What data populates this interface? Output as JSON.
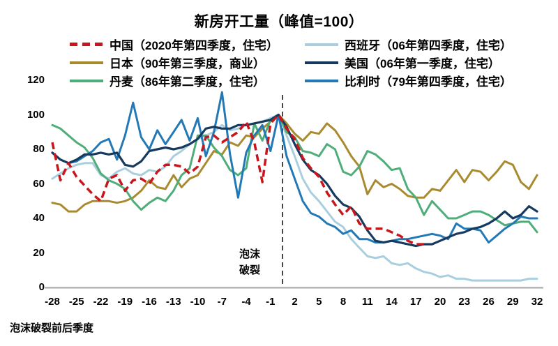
{
  "annotation": {
    "line1": "泡沫",
    "line2": "破裂"
  },
  "chart_data": {
    "type": "line",
    "title": "新房开工量（峰值=100）",
    "xlabel": "泡沫破裂前后季度",
    "ylabel": "",
    "xlim": [
      -28,
      32
    ],
    "ylim": [
      0,
      120
    ],
    "xticks": [
      -28,
      -25,
      -22,
      -19,
      -16,
      -13,
      -10,
      -7,
      -4,
      -1,
      2,
      5,
      8,
      11,
      14,
      17,
      20,
      23,
      26,
      29,
      32
    ],
    "yticks": [
      0,
      20,
      40,
      60,
      80,
      100,
      120
    ],
    "grid": false,
    "legend_position": "top",
    "axis_color": "#a6a6a6",
    "event_line": {
      "x": 0.5,
      "label": "泡沫破裂",
      "style": "dashed",
      "color": "#1a1a1a"
    },
    "draw_order": [
      "spain",
      "japan",
      "denmark",
      "belgium",
      "us",
      "china"
    ],
    "series": [
      {
        "id": "china",
        "label": "中国（2020年第四季度，住宅）",
        "color": "#c9161d",
        "dash": true,
        "width": 3.5,
        "x_start": -28,
        "values": [
          84,
          62,
          72,
          64,
          59,
          54,
          50,
          63,
          65,
          56,
          62,
          63,
          60,
          67,
          71,
          71,
          70,
          66,
          70,
          87,
          88,
          84,
          87,
          90,
          96,
          84,
          61,
          95,
          100,
          92,
          86,
          75,
          69,
          64,
          55,
          48,
          42,
          47,
          37,
          34,
          34,
          34,
          32,
          30,
          27,
          25,
          25
        ]
      },
      {
        "id": "spain",
        "label": "西班牙（06年第四季度，住宅）",
        "color": "#a9cfdf",
        "dash": false,
        "width": 3,
        "x_start": -28,
        "values": [
          63,
          66,
          69,
          71,
          72,
          72,
          65,
          63,
          67,
          69,
          66,
          65,
          68,
          67,
          70,
          76,
          79,
          83,
          86,
          88,
          90,
          94,
          91,
          92,
          94,
          95,
          96,
          98,
          100,
          88,
          76,
          63,
          55,
          50,
          44,
          38,
          35,
          28,
          23,
          18,
          17,
          18,
          14,
          13,
          14,
          11,
          9,
          8,
          6,
          7,
          5,
          5,
          4,
          4,
          4,
          4,
          4,
          4,
          4,
          5,
          5
        ]
      },
      {
        "id": "japan",
        "label": "日本（90年第三季度，商业）",
        "color": "#a98b2f",
        "dash": false,
        "width": 3,
        "x_start": -28,
        "values": [
          49,
          48,
          44,
          44,
          48,
          50,
          50,
          50,
          49,
          50,
          52,
          56,
          62,
          58,
          57,
          65,
          58,
          63,
          65,
          72,
          79,
          77,
          84,
          82,
          88,
          87,
          92,
          96,
          100,
          95,
          89,
          85,
          90,
          89,
          95,
          91,
          84,
          76,
          70,
          54,
          62,
          58,
          60,
          57,
          53,
          52,
          52,
          57,
          56,
          62,
          68,
          61,
          68,
          67,
          62,
          67,
          73,
          71,
          61,
          57,
          65
        ]
      },
      {
        "id": "us",
        "label": "美国（06年第一季度，住宅）",
        "color": "#16395e",
        "dash": false,
        "width": 3.2,
        "x_start": -28,
        "values": [
          78,
          74,
          72,
          74,
          77,
          77,
          78,
          77,
          78,
          71,
          70,
          73,
          79,
          80,
          81,
          80,
          81,
          83,
          86,
          92,
          93,
          92,
          92,
          94,
          94,
          95,
          96,
          97,
          100,
          93,
          83,
          74,
          68,
          65,
          60,
          53,
          48,
          46,
          41,
          33,
          27,
          26,
          27,
          26,
          25,
          24,
          25,
          25,
          27,
          29,
          31,
          32,
          34,
          35,
          37,
          40,
          44,
          40,
          42,
          47,
          44
        ]
      },
      {
        "id": "denmark",
        "label": "丹麦（86年第二季度，住宅）",
        "color": "#4fad79",
        "dash": false,
        "width": 3,
        "x_start": -28,
        "values": [
          94,
          92,
          88,
          84,
          81,
          75,
          66,
          62,
          60,
          57,
          50,
          45,
          49,
          52,
          50,
          56,
          65,
          69,
          88,
          88,
          81,
          76,
          68,
          65,
          69,
          95,
          85,
          97,
          100,
          90,
          87,
          79,
          78,
          76,
          83,
          80,
          67,
          65,
          70,
          79,
          77,
          73,
          68,
          69,
          57,
          52,
          42,
          50,
          45,
          40,
          40,
          42,
          44,
          44,
          42,
          39,
          36,
          37,
          38,
          38,
          32
        ]
      },
      {
        "id": "belgium",
        "label": "比利时（79年第四季度，住宅）",
        "color": "#2279b6",
        "dash": false,
        "width": 3,
        "x_start": -28,
        "values": [
          78,
          74,
          72,
          73,
          76,
          79,
          84,
          86,
          74,
          88,
          107,
          87,
          80,
          91,
          83,
          90,
          97,
          85,
          98,
          76,
          90,
          113,
          77,
          52,
          78,
          88,
          94,
          79,
          100,
          76,
          63,
          50,
          43,
          41,
          37,
          35,
          31,
          33,
          28,
          28,
          26,
          26,
          27,
          28,
          28,
          29,
          30,
          31,
          30,
          28,
          37,
          34,
          34,
          33,
          26,
          30,
          34,
          37,
          41,
          40,
          40
        ]
      }
    ],
    "legend_display_order": [
      "china",
      "spain",
      "japan",
      "us",
      "denmark",
      "belgium"
    ]
  }
}
